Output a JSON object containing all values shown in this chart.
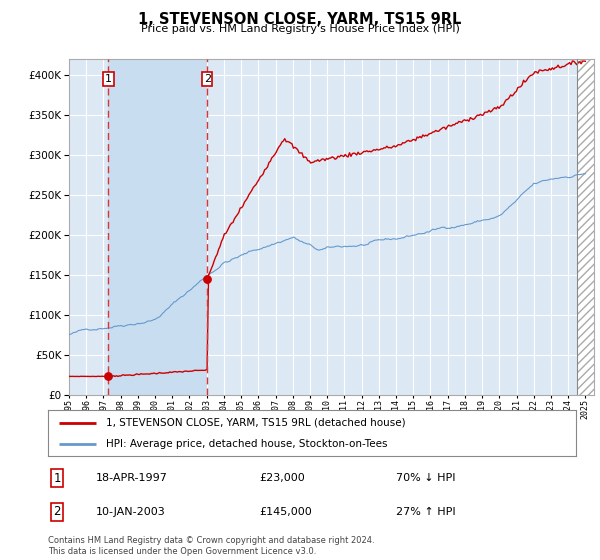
{
  "title": "1, STEVENSON CLOSE, YARM, TS15 9RL",
  "subtitle": "Price paid vs. HM Land Registry's House Price Index (HPI)",
  "legend_line1": "1, STEVENSON CLOSE, YARM, TS15 9RL (detached house)",
  "legend_line2": "HPI: Average price, detached house, Stockton-on-Tees",
  "sale1_date_str": "18-APR-1997",
  "sale1_price": 23000,
  "sale1_hpi_txt": "70% ↓ HPI",
  "sale1_year": 1997.29,
  "sale2_date_str": "10-JAN-2003",
  "sale2_price": 145000,
  "sale2_hpi_txt": "27% ↑ HPI",
  "sale2_year": 2003.03,
  "copyright_text": "Contains HM Land Registry data © Crown copyright and database right 2024.\nThis data is licensed under the Open Government Licence v3.0.",
  "xmin": 1995.0,
  "xmax": 2025.5,
  "ymin": 0,
  "ymax": 420000,
  "property_line_color": "#cc0000",
  "hpi_line_color": "#6699cc",
  "vline_color": "#dd3333",
  "background_color": "#dce9f5",
  "plot_bg_color": "#dce9f5",
  "grid_color": "#ffffff",
  "highlight_color": "#c8ddf0",
  "hatch_start": 2024.5
}
